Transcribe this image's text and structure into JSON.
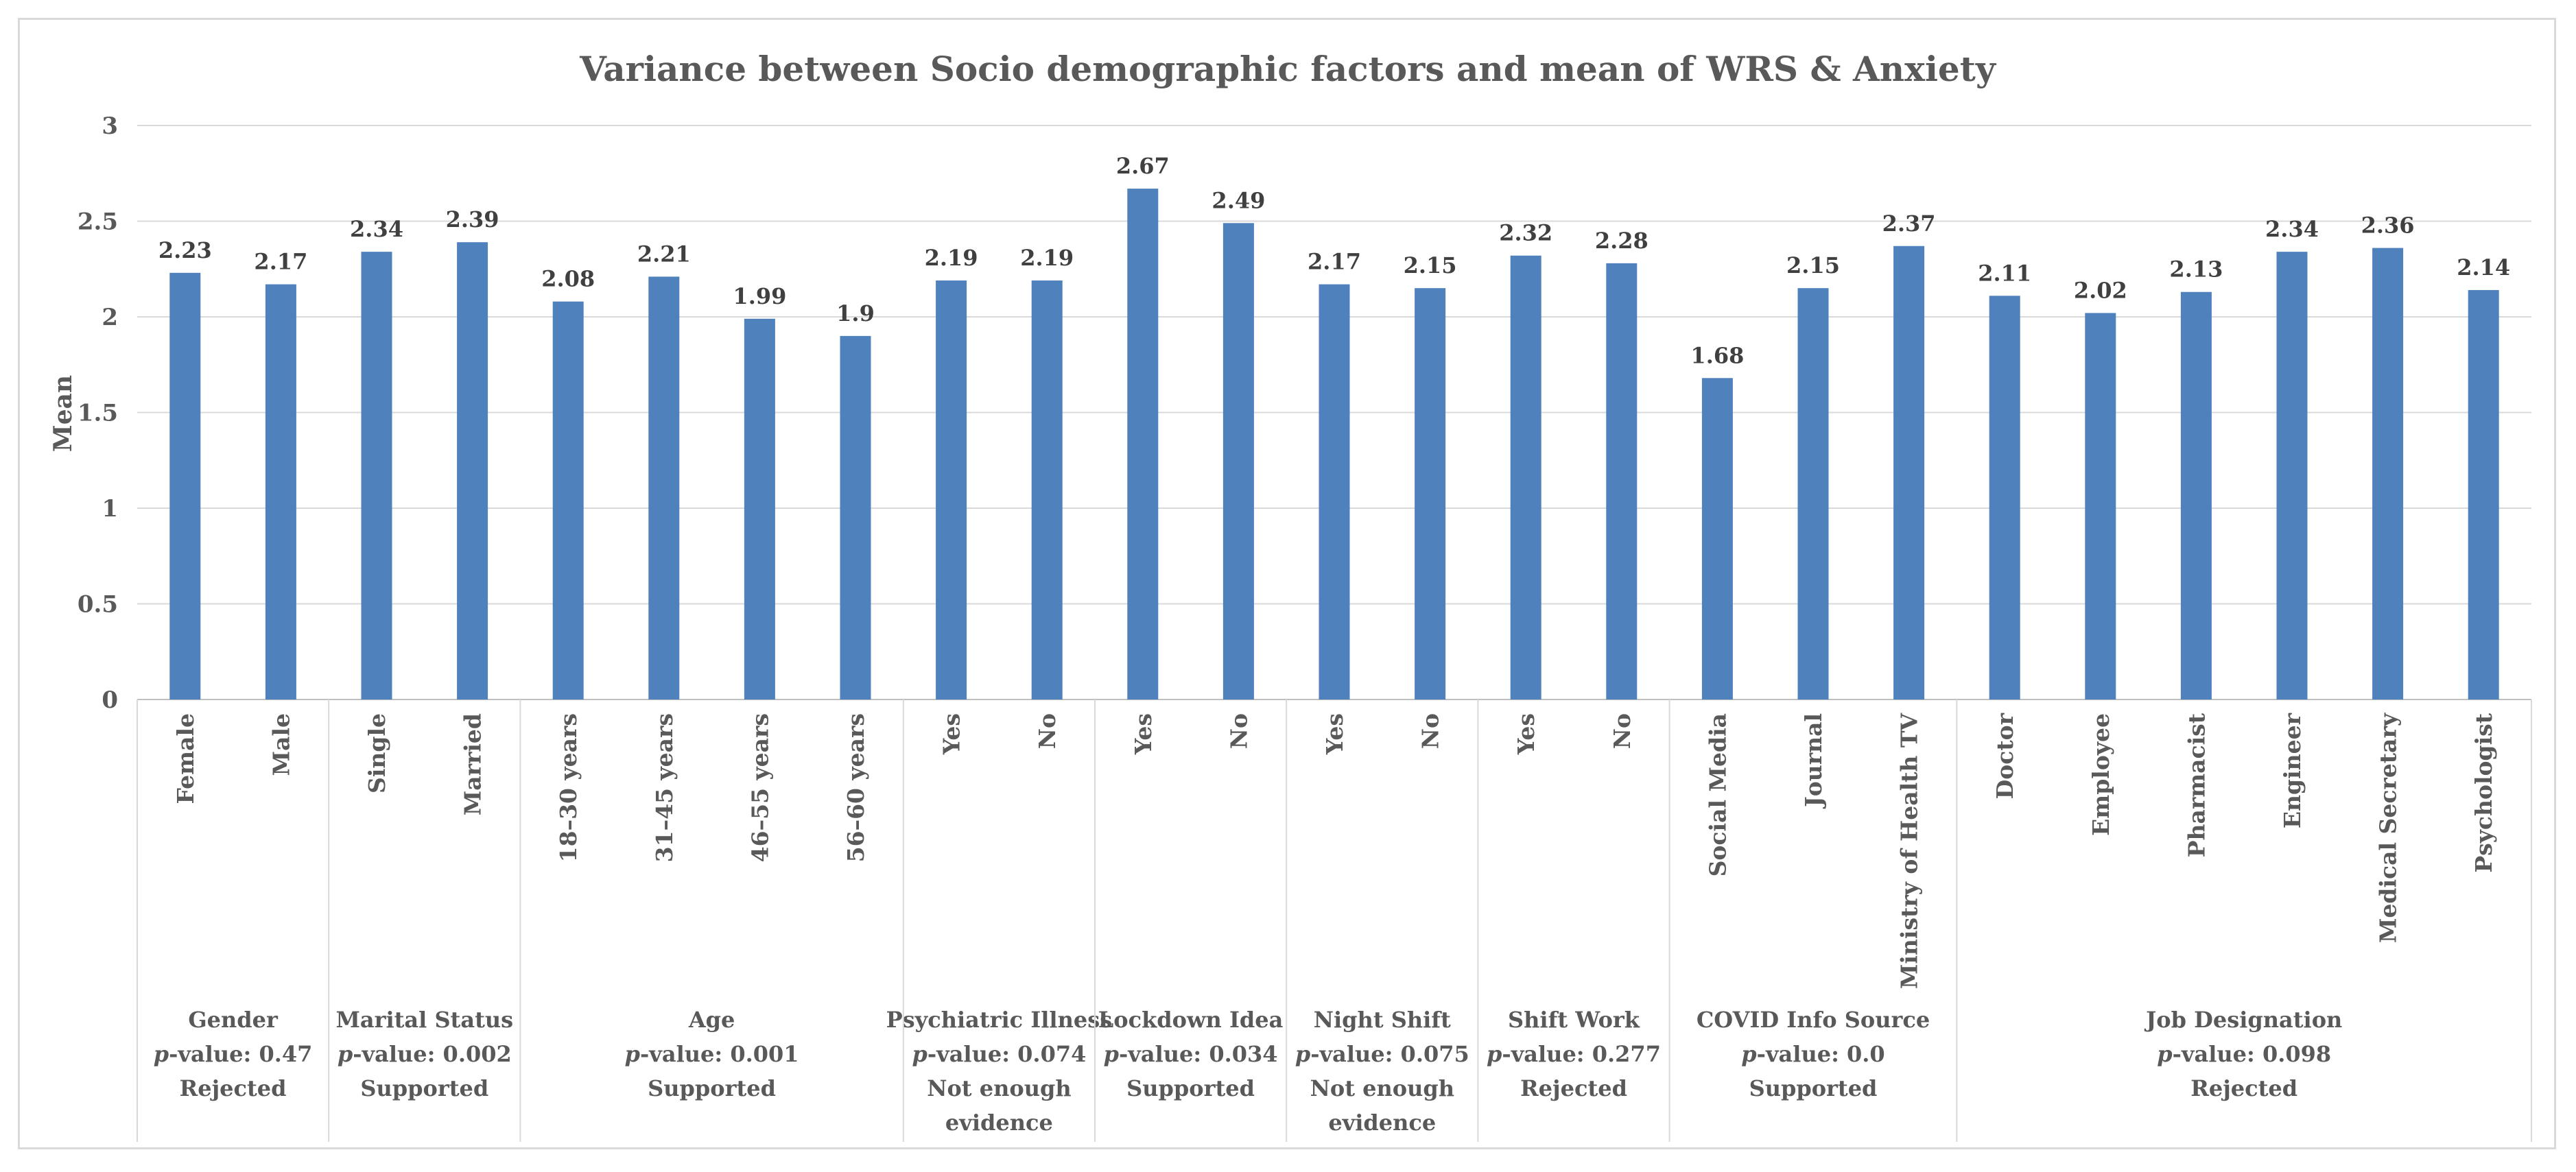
{
  "chart_data": {
    "type": "bar",
    "title": "Variance between Socio demographic factors and mean of WRS & Anxiety",
    "ylabel": "Mean",
    "xlabel": "",
    "ylim": [
      0,
      3
    ],
    "yticks": [
      "0",
      "0.5",
      "1",
      "1.5",
      "2",
      "2.5",
      "3"
    ],
    "grid": true,
    "bar_color": "#4f81bd",
    "categories": [
      "Female",
      "Male",
      "Single",
      "Married",
      "18–30 years",
      "31–45 years",
      "46–55 years",
      "56–60 years",
      "Yes",
      "No",
      "Yes",
      "No",
      "Yes",
      "No",
      "Yes",
      "No",
      "Social Media",
      "Journal",
      "Ministry of Health TV",
      "Doctor",
      "Employee",
      "Pharmacist",
      "Engineer",
      "Medical Secretary",
      "Psychologist"
    ],
    "values": [
      2.23,
      2.17,
      2.34,
      2.39,
      2.08,
      2.21,
      1.99,
      1.9,
      2.19,
      2.19,
      2.67,
      2.49,
      2.17,
      2.15,
      2.32,
      2.28,
      1.68,
      2.15,
      2.37,
      2.11,
      2.02,
      2.13,
      2.34,
      2.36,
      2.14
    ],
    "data_labels": [
      "2.23",
      "2.17",
      "2.34",
      "2.39",
      "2.08",
      "2.21",
      "1.99",
      "1.9",
      "2.19",
      "2.19",
      "2.67",
      "2.49",
      "2.17",
      "2.15",
      "2.32",
      "2.28",
      "1.68",
      "2.15",
      "2.37",
      "2.11",
      "2.02",
      "2.13",
      "2.34",
      "2.36",
      "2.14"
    ],
    "groups": [
      {
        "name": "Gender",
        "p_label": "p",
        "p_value": "-value: 0.47",
        "result": "Rejected",
        "count": 2
      },
      {
        "name": "Marital Status",
        "p_label": "p",
        "p_value": "-value: 0.002",
        "result": "Supported",
        "count": 2
      },
      {
        "name": "Age",
        "p_label": "p",
        "p_value": "-value: 0.001",
        "result": "Supported",
        "count": 4
      },
      {
        "name": "Psychiatric Illness",
        "p_label": "p",
        "p_value": "-value: 0.074",
        "result": "Not enough evidence",
        "count": 2
      },
      {
        "name": "Lockdown Idea",
        "p_label": "p",
        "p_value": "-value: 0.034",
        "result": "Supported",
        "count": 2
      },
      {
        "name": "Night Shift",
        "p_label": "p",
        "p_value": "-value: 0.075",
        "result": "Not enough evidence",
        "count": 2
      },
      {
        "name": "Shift Work",
        "p_label": "p",
        "p_value": "-value: 0.277",
        "result": "Rejected",
        "count": 2
      },
      {
        "name": "COVID Info Source",
        "p_label": "p",
        "p_value": "-value: 0.0",
        "result": "Supported",
        "count": 3
      },
      {
        "name": "Job Designation",
        "p_label": "p",
        "p_value": "-value: 0.098",
        "result": "Rejected",
        "count": 6
      }
    ]
  }
}
